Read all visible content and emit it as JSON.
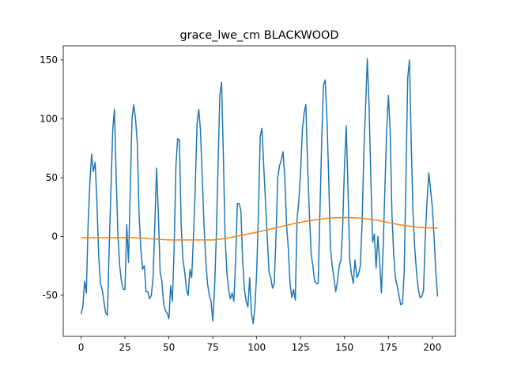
{
  "chart_data": {
    "type": "line",
    "title": "grace_lwe_cm BLACKWOOD",
    "x": [
      0,
      1,
      2,
      3,
      4,
      5,
      6,
      7,
      8,
      9,
      10,
      11,
      12,
      13,
      14,
      15,
      16,
      17,
      18,
      19,
      20,
      21,
      22,
      23,
      24,
      25,
      26,
      27,
      28,
      29,
      30,
      31,
      32,
      33,
      34,
      35,
      36,
      37,
      38,
      39,
      40,
      41,
      42,
      43,
      44,
      45,
      46,
      47,
      48,
      49,
      50,
      51,
      52,
      53,
      54,
      55,
      56,
      57,
      58,
      59,
      60,
      61,
      62,
      63,
      64,
      65,
      66,
      67,
      68,
      69,
      70,
      71,
      72,
      73,
      74,
      75,
      76,
      77,
      78,
      79,
      80,
      81,
      82,
      83,
      84,
      85,
      86,
      87,
      88,
      89,
      90,
      91,
      92,
      93,
      94,
      95,
      96,
      97,
      98,
      99,
      100,
      101,
      102,
      103,
      104,
      105,
      106,
      107,
      108,
      109,
      110,
      111,
      112,
      113,
      114,
      115,
      116,
      117,
      118,
      119,
      120,
      121,
      122,
      123,
      124,
      125,
      126,
      127,
      128,
      129,
      130,
      131,
      132,
      133,
      134,
      135,
      136,
      137,
      138,
      139,
      140,
      141,
      142,
      143,
      144,
      145,
      146,
      147,
      148,
      149,
      150,
      151,
      152,
      153,
      154,
      155,
      156,
      157,
      158,
      159,
      160,
      161,
      162,
      163,
      164,
      165,
      166,
      167,
      168,
      169,
      170,
      171,
      172,
      173,
      174,
      175,
      176,
      177,
      178,
      179,
      180,
      181,
      182,
      183,
      184,
      185,
      186,
      187,
      188,
      189,
      190,
      191,
      192,
      193,
      194,
      195,
      196,
      197,
      198,
      199,
      200,
      201,
      202,
      203
    ],
    "series": [
      {
        "color": "#1f77b4",
        "values": [
          -66,
          -60,
          -38,
          -48,
          10,
          45,
          70,
          55,
          63,
          30,
          -15,
          -40,
          -45,
          -55,
          -65,
          -67,
          -10,
          40,
          90,
          108,
          50,
          0,
          -25,
          -38,
          -45,
          -45,
          10,
          -22,
          40,
          100,
          112,
          100,
          80,
          20,
          -10,
          -28,
          -25,
          -47,
          -47,
          -53,
          -50,
          -35,
          10,
          58,
          20,
          -30,
          -38,
          -57,
          -63,
          -65,
          -70,
          -42,
          -55,
          -10,
          60,
          83,
          82,
          10,
          -20,
          -30,
          -45,
          -50,
          -28,
          -35,
          0,
          40,
          95,
          108,
          90,
          50,
          10,
          -20,
          -40,
          -50,
          -55,
          -72,
          -45,
          0,
          60,
          120,
          131,
          70,
          0,
          -30,
          -45,
          -53,
          -48,
          -55,
          -20,
          28,
          28,
          22,
          -20,
          -45,
          -55,
          -60,
          -35,
          -65,
          -74,
          -60,
          -30,
          20,
          85,
          92,
          60,
          30,
          0,
          -30,
          -35,
          -44,
          -40,
          0,
          50,
          60,
          65,
          72,
          50,
          10,
          -10,
          -40,
          -52,
          -45,
          -54,
          15,
          30,
          55,
          90,
          105,
          112,
          60,
          20,
          -15,
          -25,
          -38,
          -40,
          -40,
          20,
          80,
          128,
          133,
          100,
          50,
          -10,
          -25,
          -35,
          -47,
          -38,
          -25,
          -20,
          10,
          60,
          94,
          40,
          -20,
          -32,
          -40,
          -20,
          -35,
          -32,
          -25,
          10,
          70,
          110,
          151,
          110,
          50,
          -5,
          2,
          -27,
          0,
          -20,
          -48,
          -10,
          40,
          90,
          120,
          90,
          20,
          -15,
          -35,
          -42,
          -50,
          -58,
          -57,
          -30,
          50,
          135,
          150,
          80,
          20,
          -10,
          -30,
          -45,
          -52,
          -51,
          -46,
          0,
          30,
          54,
          40,
          25,
          0,
          -30,
          -51
        ]
      },
      {
        "color": "#ff7f0e",
        "values": [
          -1,
          -1,
          -1,
          -1,
          -1,
          -1,
          -1,
          -1,
          -1,
          -1,
          -1,
          -1,
          -1,
          -1,
          -1,
          -1,
          -1,
          -1,
          -1,
          -1,
          -1,
          -1,
          -1,
          -1,
          -1,
          -1,
          -1,
          -1,
          -1,
          -1,
          -1,
          -1.1,
          -1.2,
          -1.3,
          -1.4,
          -1.5,
          -1.6,
          -1.7,
          -1.8,
          -1.9,
          -2.0,
          -2.1,
          -2.2,
          -2.3,
          -2.4,
          -2.5,
          -2.6,
          -2.7,
          -2.8,
          -2.9,
          -3.0,
          -3,
          -3,
          -3,
          -3,
          -3,
          -3,
          -3,
          -3,
          -3,
          -3,
          -3,
          -3,
          -3,
          -3,
          -3,
          -3,
          -3,
          -3,
          -3,
          -3,
          -3,
          -3,
          -3,
          -3,
          -3,
          -2.9,
          -2.7,
          -2.5,
          -2.3,
          -2.1,
          -1.9,
          -1.7,
          -1.5,
          -1.2,
          -0.9,
          -0.6,
          -0.3,
          0.0,
          0.3,
          0.6,
          0.9,
          1.2,
          1.5,
          1.8,
          2.1,
          2.4,
          2.7,
          3.0,
          3.3,
          3.6,
          3.9,
          4.2,
          4.6,
          4.9,
          5.3,
          5.6,
          6.0,
          6.3,
          6.7,
          7.0,
          7.4,
          7.7,
          8.1,
          8.4,
          8.8,
          9.1,
          9.5,
          9.8,
          10.2,
          10.5,
          10.8,
          11.1,
          11.4,
          11.7,
          12.0,
          12.3,
          12.6,
          12.9,
          13.2,
          13.4,
          13.6,
          13.8,
          14.0,
          14.2,
          14.4,
          14.6,
          14.8,
          15.0,
          15.2,
          15.4,
          15.5,
          15.6,
          15.7,
          15.8,
          15.9,
          16.0,
          16.0,
          16.0,
          16.1,
          16.1,
          16.1,
          16.1,
          16.0,
          16.0,
          15.9,
          15.9,
          15.8,
          15.7,
          15.6,
          15.5,
          15.3,
          15.1,
          14.9,
          14.7,
          14.5,
          14.3,
          14.1,
          13.9,
          13.6,
          13.3,
          13.0,
          12.7,
          12.4,
          12.1,
          11.8,
          11.5,
          11.2,
          10.9,
          10.6,
          10.3,
          10.0,
          9.8,
          9.6,
          9.4,
          9.2,
          9.0,
          8.8,
          8.6,
          8.4,
          8.2,
          8.0,
          7.9,
          7.8,
          7.7,
          7.6,
          7.5,
          7.4,
          7.3,
          7.3,
          7.2,
          7.2,
          7.1,
          7.1
        ]
      }
    ],
    "xlim": [
      -10.15,
      213.15
    ],
    "xticks": [
      0,
      25,
      50,
      75,
      100,
      125,
      150,
      175,
      200
    ],
    "ylim": [
      -84.9,
      162
    ],
    "yticks": [
      -50,
      0,
      50,
      100,
      150
    ],
    "grid": false
  }
}
